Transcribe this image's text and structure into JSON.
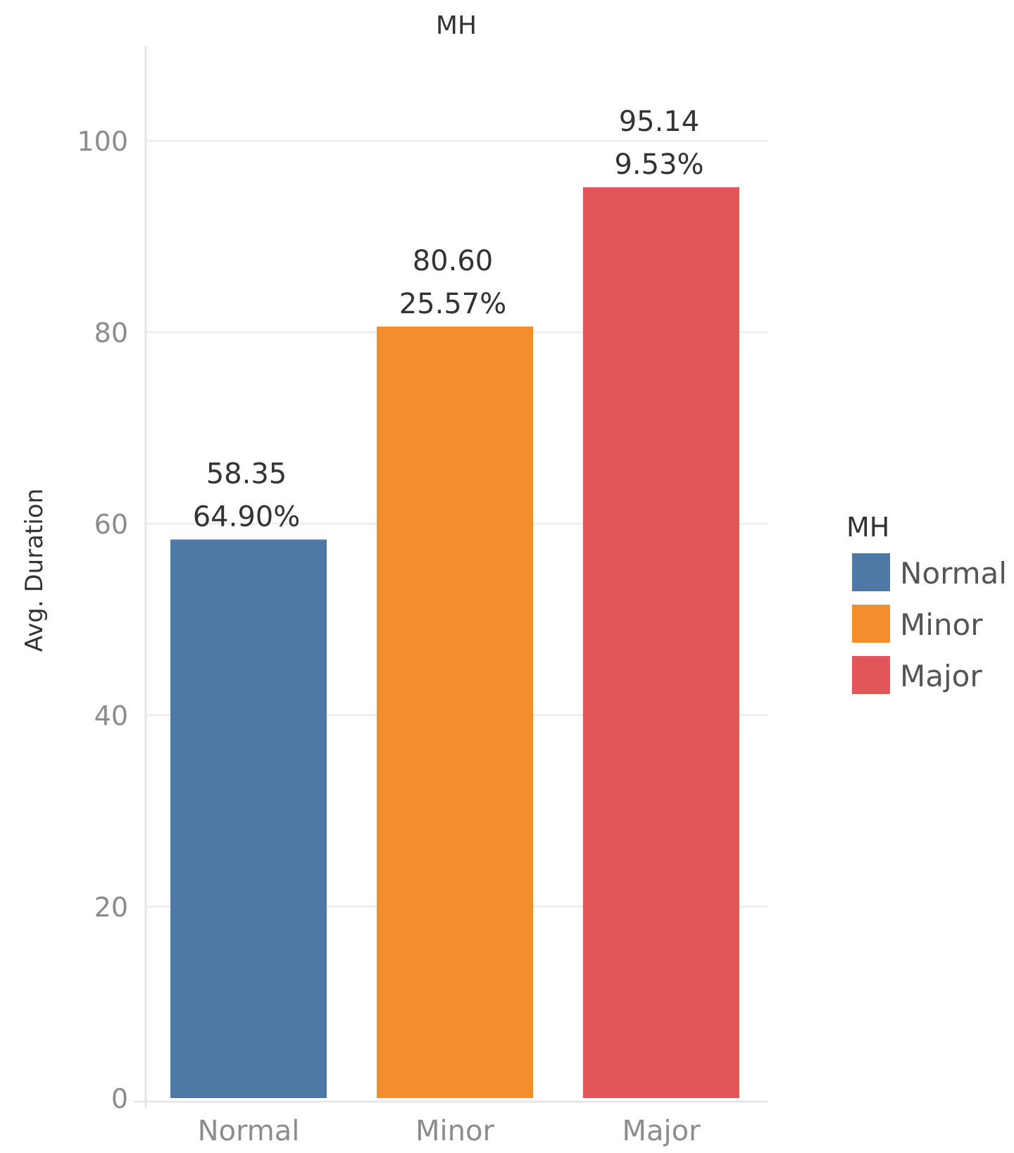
{
  "chart_data": {
    "type": "bar",
    "title": "MH",
    "ylabel": "Avg. Duration",
    "xlabel": "",
    "ylim": [
      0,
      110
    ],
    "yticks": [
      0,
      20,
      40,
      60,
      80,
      100
    ],
    "grid": true,
    "categories": [
      "Normal",
      "Minor",
      "Major"
    ],
    "values": [
      58.35,
      80.6,
      95.14
    ],
    "value_labels": [
      "58.35",
      "80.60",
      "95.14"
    ],
    "percent_labels": [
      "64.90%",
      "25.57%",
      "9.53%"
    ],
    "colors": [
      "#4e79a7",
      "#f28e2b",
      "#e15759"
    ],
    "legend": {
      "title": "MH",
      "position": "right",
      "items": [
        "Normal",
        "Minor",
        "Major"
      ]
    }
  }
}
